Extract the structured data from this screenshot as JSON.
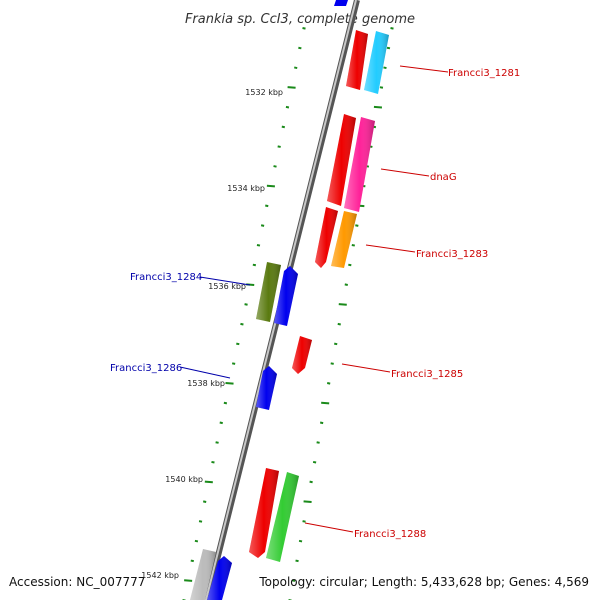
{
  "map": {
    "title": "Frankia sp. CcI3, complete genome",
    "accession": "Accession: NC_007777",
    "summary": "Topology: circular; Length: 5,433,628 bp; Genes: 4,569"
  },
  "ticks": [
    {
      "label": "1532 kbp"
    },
    {
      "label": "1534 kbp"
    },
    {
      "label": "1536 kbp"
    },
    {
      "label": "1538 kbp"
    },
    {
      "label": "1540 kbp"
    },
    {
      "label": "1542 kbp"
    }
  ],
  "gene_labels": [
    {
      "text": "Francci3_1281",
      "color": "#cc0000"
    },
    {
      "text": "dnaG",
      "color": "#cc0000"
    },
    {
      "text": "Francci3_1283",
      "color": "#cc0000"
    },
    {
      "text": "Francci3_1284",
      "color": "#0000aa"
    },
    {
      "text": "Francci3_1285",
      "color": "#cc0000"
    },
    {
      "text": "Francci3_1286",
      "color": "#0000aa"
    },
    {
      "text": "Francci3_1288",
      "color": "#cc0000"
    }
  ],
  "colors": {
    "backbone": "#8a8a8a",
    "tick": "#1a8a1a",
    "red": "#ee0000",
    "blue": "#0000ee",
    "cyan": "#22ccff",
    "magenta": "#ff2299",
    "orange": "#ff9900",
    "olive": "#5a7a10",
    "green": "#33cc33",
    "grey": "#bbbbbb"
  }
}
